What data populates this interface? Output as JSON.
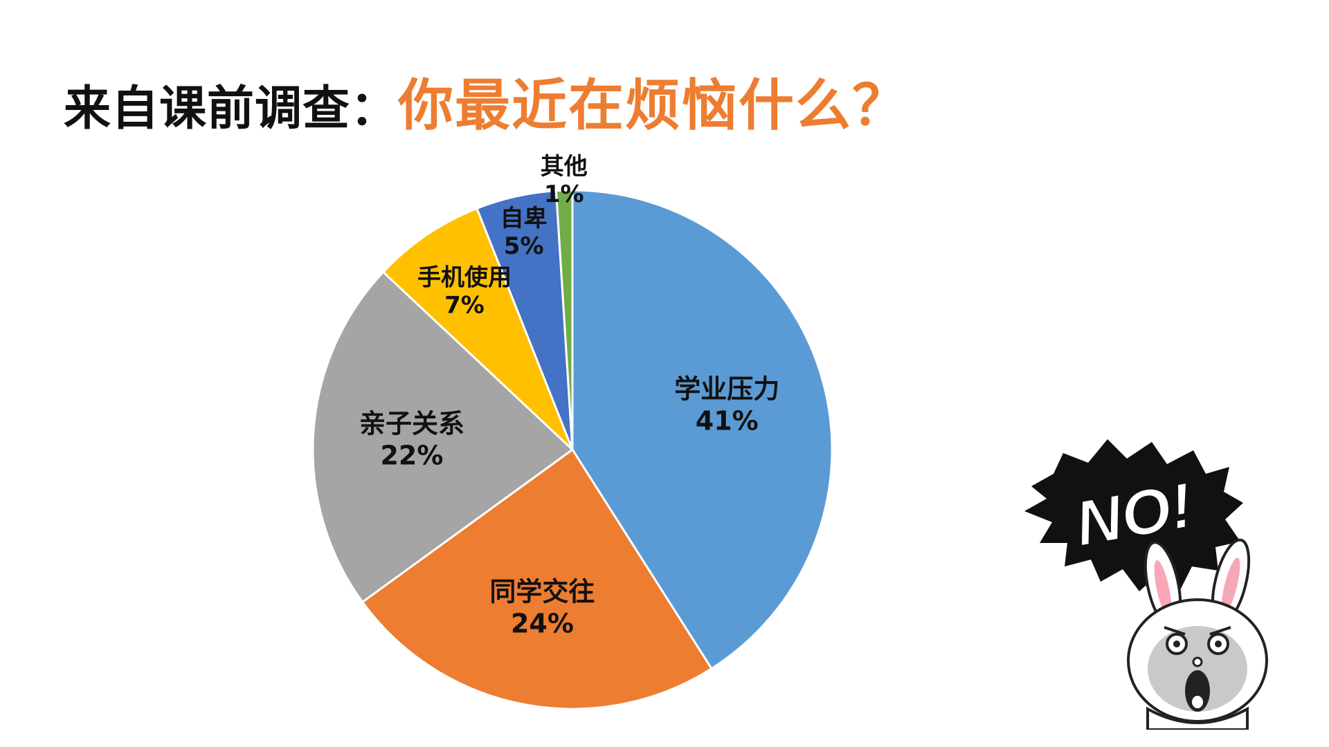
{
  "title": {
    "prefix": "来自课前调查：",
    "question": "你最近在烦恼什么？"
  },
  "chart_data": {
    "type": "pie",
    "title": "",
    "categories": [
      "学业压力",
      "同学交往",
      "亲子关系",
      "手机使用",
      "自卑",
      "其他"
    ],
    "values": [
      41,
      24,
      22,
      7,
      5,
      1
    ],
    "labels": [
      "41%",
      "24%",
      "22%",
      "7%",
      "5%",
      "1%"
    ],
    "colors": [
      "#5B9BD5",
      "#ED7D31",
      "#A5A5A5",
      "#FFC000",
      "#4472C4",
      "#70AD47"
    ],
    "start": "12 o'clock",
    "direction": "clockwise",
    "legend": "none"
  },
  "sticker": {
    "text": "NO!",
    "icon": "shouting-bunny-icon"
  }
}
